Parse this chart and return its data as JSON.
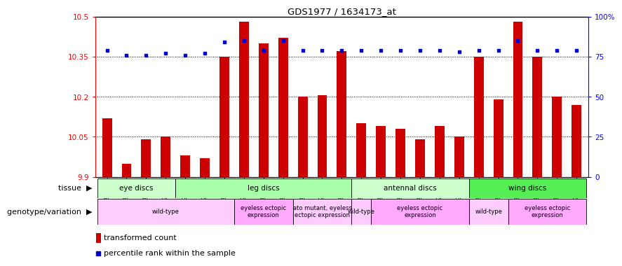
{
  "title": "GDS1977 / 1634173_at",
  "samples": [
    "GSM91570",
    "GSM91585",
    "GSM91609",
    "GSM91616",
    "GSM91617",
    "GSM91618",
    "GSM91619",
    "GSM91478",
    "GSM91479",
    "GSM91480",
    "GSM91472",
    "GSM91473",
    "GSM91474",
    "GSM91484",
    "GSM91491",
    "GSM91515",
    "GSM91475",
    "GSM91476",
    "GSM91477",
    "GSM91620",
    "GSM91621",
    "GSM91622",
    "GSM91481",
    "GSM91482",
    "GSM91483"
  ],
  "red_values": [
    10.12,
    9.95,
    10.04,
    10.05,
    9.98,
    9.97,
    10.35,
    10.48,
    10.4,
    10.42,
    10.2,
    10.205,
    10.37,
    10.1,
    10.09,
    10.08,
    10.04,
    10.09,
    10.05,
    10.35,
    10.19,
    10.48,
    10.35,
    10.2,
    10.17
  ],
  "blue_values": [
    79,
    76,
    76,
    77,
    76,
    77,
    84,
    85,
    79,
    85,
    79,
    79,
    79,
    79,
    79,
    79,
    79,
    79,
    78,
    79,
    79,
    85,
    79,
    79,
    79
  ],
  "ymin": 9.9,
  "ymax": 10.5,
  "ytick_vals": [
    9.9,
    10.05,
    10.2,
    10.35,
    10.5
  ],
  "ytick_labels": [
    "9.9",
    "10.05",
    "10.2",
    "10.35",
    "10.5"
  ],
  "right_ytick_vals": [
    0,
    25,
    50,
    75,
    100
  ],
  "right_ytick_labels": [
    "0",
    "25",
    "50",
    "75",
    "100%"
  ],
  "hlines": [
    10.05,
    10.2,
    10.35
  ],
  "bar_color": "#cc0000",
  "dot_color": "#0000cc",
  "tissue_groups": [
    {
      "label": "eye discs",
      "start": 0,
      "end": 4,
      "color": "#ccffcc"
    },
    {
      "label": "leg discs",
      "start": 4,
      "end": 13,
      "color": "#aaffaa"
    },
    {
      "label": "antennal discs",
      "start": 13,
      "end": 19,
      "color": "#ccffcc"
    },
    {
      "label": "wing discs",
      "start": 19,
      "end": 25,
      "color": "#55ee55"
    }
  ],
  "genotype_groups": [
    {
      "label": "wild-type",
      "start": 0,
      "end": 7,
      "color": "#ffccff"
    },
    {
      "label": "eyeless ectopic\nexpression",
      "start": 7,
      "end": 10,
      "color": "#ffaaff"
    },
    {
      "label": "ato mutant, eyeless\nectopic expression",
      "start": 10,
      "end": 13,
      "color": "#ffccff"
    },
    {
      "label": "wild-type",
      "start": 13,
      "end": 14,
      "color": "#ffccff"
    },
    {
      "label": "eyeless ectopic\nexpression",
      "start": 14,
      "end": 19,
      "color": "#ffaaff"
    },
    {
      "label": "wild-type",
      "start": 19,
      "end": 21,
      "color": "#ffccff"
    },
    {
      "label": "eyeless ectopic\nexpression",
      "start": 21,
      "end": 25,
      "color": "#ffaaff"
    }
  ],
  "legend_items": [
    {
      "label": "transformed count",
      "color": "#cc0000",
      "marker": "s",
      "is_bar": true
    },
    {
      "label": "percentile rank within the sample",
      "color": "#0000cc",
      "marker": "s",
      "is_bar": false
    }
  ]
}
